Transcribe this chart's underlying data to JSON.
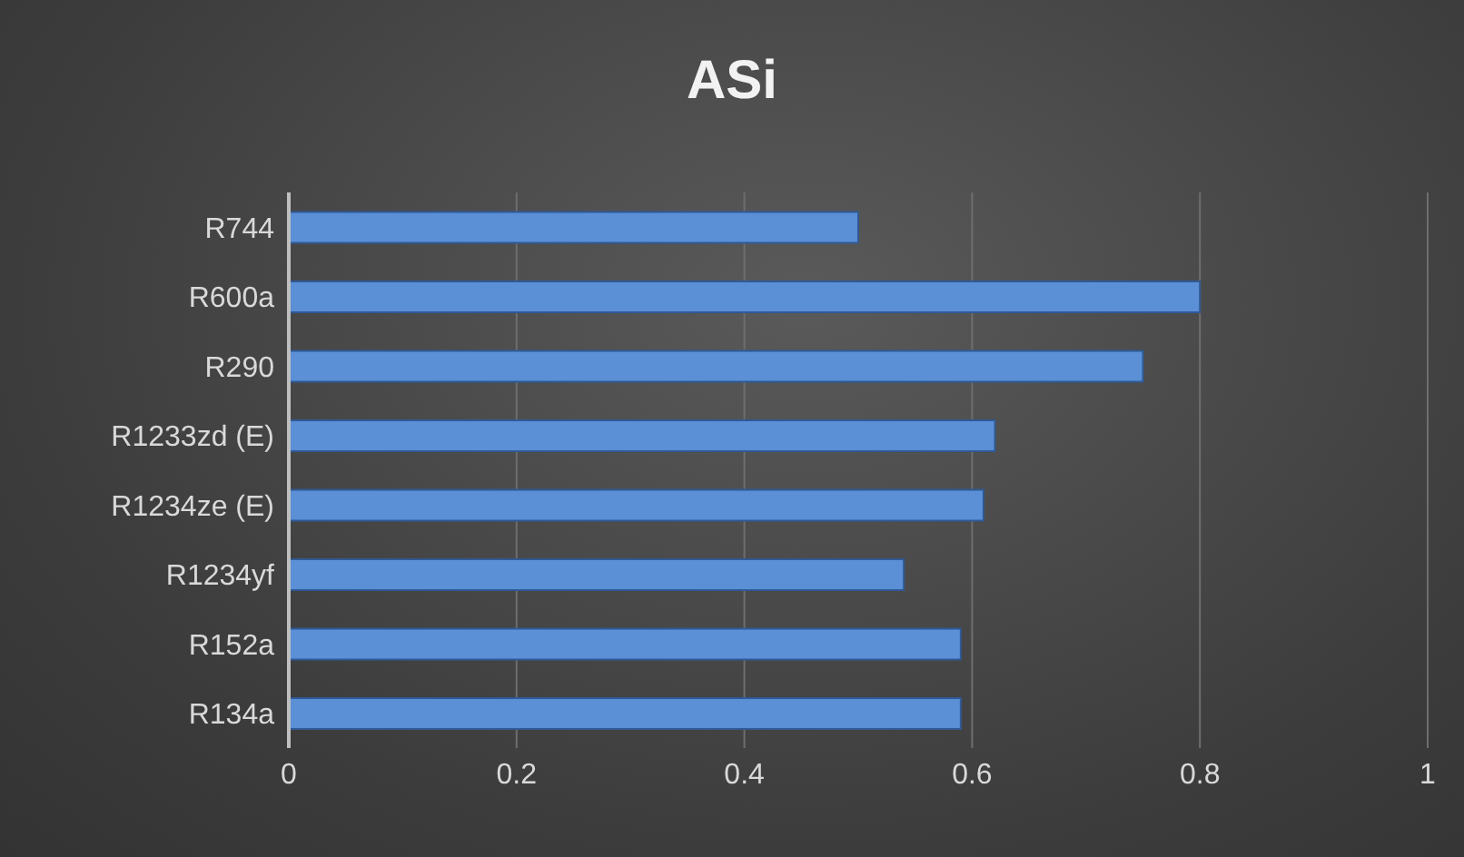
{
  "chart_data": {
    "type": "bar",
    "orientation": "horizontal",
    "title": "ASi",
    "categories": [
      "R744",
      "R600a",
      "R290",
      "R1233zd (E)",
      "R1234ze (E)",
      "R1234yf",
      "R152a",
      "R134a"
    ],
    "values": [
      0.5,
      0.8,
      0.75,
      0.62,
      0.61,
      0.54,
      0.59,
      0.59
    ],
    "color": "#5b8fd6",
    "xlim": [
      0,
      1
    ],
    "xticks": [
      0,
      0.2,
      0.4,
      0.6,
      0.8,
      1
    ],
    "grid": "x",
    "legend": false
  }
}
